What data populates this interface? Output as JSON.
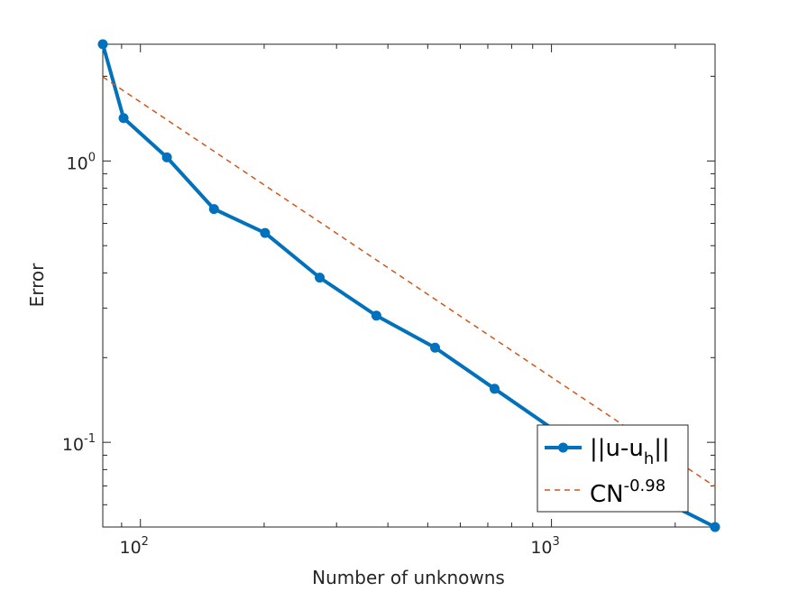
{
  "chart_data": {
    "type": "line",
    "xscale": "log",
    "yscale": "log",
    "xlabel": "Number of unknowns",
    "ylabel": "Error",
    "xlim": [
      81,
      2500
    ],
    "ylim": [
      0.05,
      2.6
    ],
    "xticks": [
      {
        "value": 100,
        "base": "10",
        "exp": "2"
      },
      {
        "value": 1000,
        "base": "10",
        "exp": "3"
      }
    ],
    "yticks": [
      {
        "value": 0.1,
        "base": "10",
        "exp": "-1"
      },
      {
        "value": 1,
        "base": "10",
        "exp": "0"
      }
    ],
    "grid": false,
    "legend_position": "bottom-right",
    "series": [
      {
        "name_main": "||u-u",
        "name_sub": "h",
        "name_tail": "||",
        "style": "solid-marker",
        "color": "#0072BD",
        "x": [
          81,
          91,
          116,
          151,
          201,
          273,
          375,
          521,
          727,
          1021,
          1441,
          2500
        ],
        "y": [
          2.6,
          1.42,
          1.03,
          0.675,
          0.555,
          0.385,
          0.282,
          0.217,
          0.155,
          0.11,
          0.075,
          0.05
        ]
      },
      {
        "name_main": "CN",
        "name_sup": "-0.98",
        "style": "dashed",
        "color": "#D95319",
        "x": [
          81,
          2500
        ],
        "y": [
          1.99,
          0.0696
        ]
      }
    ]
  }
}
